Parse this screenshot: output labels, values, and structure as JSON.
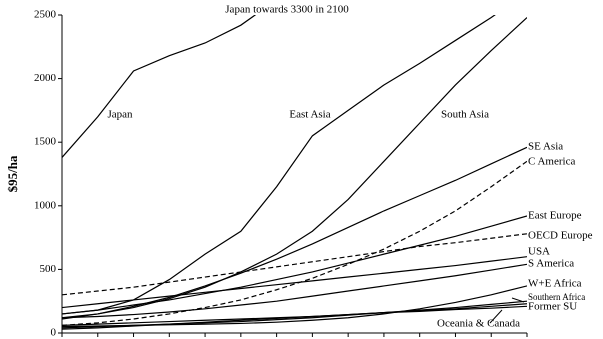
{
  "chart_data": {
    "type": "line",
    "y_label": "$95/ha",
    "annotation": "Japan towards 3300 in 2100",
    "categories": [
      null,
      null,
      null,
      null,
      null,
      null,
      null,
      null,
      null,
      null,
      null,
      null,
      null,
      null
    ],
    "ylim": [
      0,
      2500
    ],
    "yticks": [
      0,
      500,
      1000,
      1500,
      2000,
      2500
    ],
    "series": [
      {
        "name": "Japan",
        "color": "#000000",
        "values": [
          1380,
          1700,
          2060,
          2180,
          2280,
          2420,
          2620,
          null,
          null,
          null,
          null,
          null,
          null,
          null
        ]
      },
      {
        "name": "East Asia",
        "color": "#000000",
        "values": [
          150,
          180,
          260,
          420,
          620,
          800,
          1150,
          1550,
          1750,
          1950,
          2120,
          2300,
          2480,
          2680
        ]
      },
      {
        "name": "South Asia",
        "color": "#000000",
        "values": [
          120,
          150,
          200,
          270,
          360,
          480,
          620,
          800,
          1050,
          1350,
          1650,
          1950,
          2220,
          2480
        ]
      },
      {
        "name": "SE Asia",
        "color": "#000000",
        "values": [
          110,
          150,
          210,
          280,
          370,
          470,
          580,
          700,
          830,
          960,
          1080,
          1200,
          1330,
          1460
        ]
      },
      {
        "name": "C America",
        "color": "#000000",
        "dashed": true,
        "values": [
          60,
          80,
          110,
          150,
          200,
          260,
          340,
          430,
          540,
          660,
          800,
          960,
          1150,
          1350
        ]
      },
      {
        "name": "East Europe",
        "color": "#000000",
        "values": [
          150,
          180,
          220,
          260,
          310,
          360,
          420,
          480,
          550,
          620,
          690,
          760,
          840,
          920
        ]
      },
      {
        "name": "OECD Europe",
        "color": "#000000",
        "dashed": true,
        "values": [
          300,
          330,
          360,
          400,
          440,
          480,
          520,
          560,
          600,
          640,
          680,
          710,
          745,
          780
        ]
      },
      {
        "name": "USA",
        "color": "#000000",
        "values": [
          200,
          230,
          260,
          290,
          320,
          350,
          380,
          410,
          440,
          470,
          500,
          530,
          565,
          600
        ]
      },
      {
        "name": "S America",
        "color": "#000000",
        "values": [
          120,
          130,
          145,
          165,
          190,
          220,
          250,
          290,
          330,
          370,
          410,
          450,
          495,
          540
        ]
      },
      {
        "name": "W+E Africa",
        "color": "#000000",
        "values": [
          50,
          55,
          60,
          65,
          70,
          75,
          85,
          100,
          120,
          150,
          190,
          240,
          300,
          370
        ]
      },
      {
        "name": "Southern Africa",
        "color": "#000000",
        "values": [
          40,
          50,
          60,
          70,
          80,
          90,
          105,
          120,
          140,
          160,
          180,
          200,
          225,
          250
        ]
      },
      {
        "name": "Former SU",
        "color": "#000000",
        "values": [
          60,
          70,
          80,
          90,
          100,
          110,
          120,
          130,
          145,
          160,
          170,
          185,
          195,
          210
        ]
      },
      {
        "name": "Oceania & Canada",
        "color": "#000000",
        "values": [
          30,
          40,
          55,
          70,
          85,
          100,
          115,
          130,
          145,
          160,
          175,
          190,
          210,
          230
        ]
      }
    ]
  }
}
